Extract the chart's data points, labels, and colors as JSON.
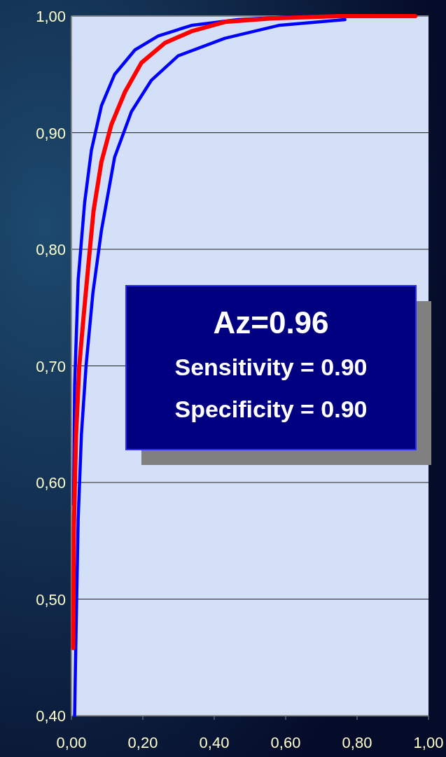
{
  "chart_data": {
    "type": "line",
    "annotations": [
      "Az=0.96",
      "Sensitivity = 0.90",
      "Specificity = 0.90"
    ],
    "xlim": [
      0,
      1
    ],
    "ylim": [
      0.4,
      1
    ],
    "xticks": [
      {
        "value": 0,
        "label": "0,00"
      },
      {
        "value": 0.2,
        "label": "0,20"
      },
      {
        "value": 0.4,
        "label": "0,40"
      },
      {
        "value": 0.6,
        "label": "0,60"
      },
      {
        "value": 0.8,
        "label": "0,80"
      },
      {
        "value": 1,
        "label": "1,00"
      }
    ],
    "yticks": [
      {
        "value": 0.4,
        "label": "0,40"
      },
      {
        "value": 0.5,
        "label": "0,50"
      },
      {
        "value": 0.6,
        "label": "0,60"
      },
      {
        "value": 0.7,
        "label": "0,70"
      },
      {
        "value": 0.8,
        "label": "0,80"
      },
      {
        "value": 0.9,
        "label": "0,90"
      },
      {
        "value": 1,
        "label": "1,00"
      }
    ],
    "grid": "y",
    "marker": "none",
    "line_style": "solid",
    "series": [
      {
        "color": "#0000ff",
        "x": [
          0.006,
          0.009,
          0.019,
          0.037,
          0.056,
          0.084,
          0.121,
          0.178,
          0.243,
          0.336,
          0.467,
          0.654
        ],
        "values": [
          0.581,
          0.683,
          0.774,
          0.84,
          0.885,
          0.923,
          0.95,
          0.971,
          0.983,
          0.992,
          0.997,
          1.0
        ]
      },
      {
        "color": "#0000ff",
        "x": [
          0.009,
          0.013,
          0.019,
          0.028,
          0.041,
          0.06,
          0.084,
          0.121,
          0.168,
          0.224,
          0.299,
          0.43,
          0.58,
          0.766
        ],
        "values": [
          0.4,
          0.473,
          0.569,
          0.641,
          0.7,
          0.762,
          0.816,
          0.879,
          0.918,
          0.945,
          0.966,
          0.981,
          0.992,
          0.997
        ]
      },
      {
        "color": "#ff0000",
        "x": [
          0.005,
          0.007,
          0.013,
          0.022,
          0.034,
          0.047,
          0.062,
          0.084,
          0.112,
          0.15,
          0.196,
          0.262,
          0.336,
          0.43,
          0.561,
          0.748,
          0.963
        ],
        "values": [
          0.458,
          0.563,
          0.641,
          0.7,
          0.742,
          0.785,
          0.833,
          0.875,
          0.907,
          0.935,
          0.96,
          0.977,
          0.987,
          0.995,
          0.998,
          1.0,
          1.0
        ]
      }
    ]
  }
}
